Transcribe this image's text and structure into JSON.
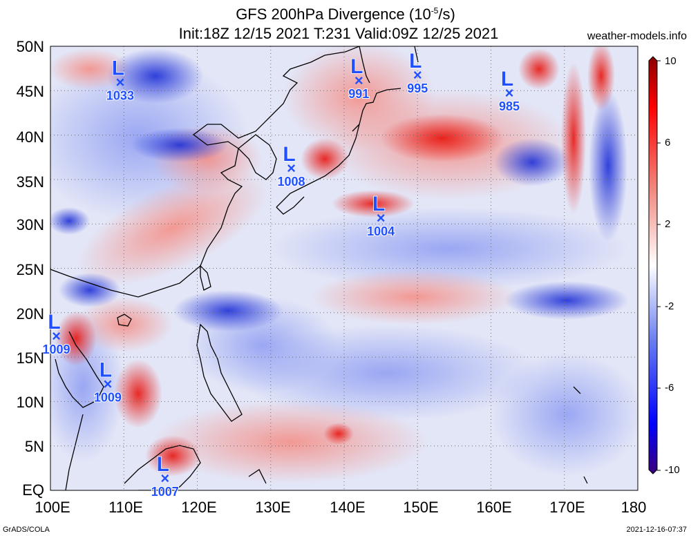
{
  "header": {
    "title_main": "GFS 200hPa Divergence (10",
    "title_exp": "-5",
    "title_unit": "/s)",
    "subtitle": "Init:18Z 12/15 2021 T:231 Valid:09Z 12/25 2021",
    "site": "weather-models.info"
  },
  "footer": {
    "software": "GrADS/COLA",
    "timestamp": "2021-12-16-07:37"
  },
  "map": {
    "lat_labels": [
      "50N",
      "45N",
      "40N",
      "35N",
      "30N",
      "25N",
      "20N",
      "15N",
      "10N",
      "5N",
      "EQ"
    ],
    "lon_labels": [
      "100E",
      "110E",
      "120E",
      "130E",
      "140E",
      "150E",
      "160E",
      "170E",
      "180"
    ],
    "lows": [
      {
        "symbol": "L",
        "marker": "×",
        "pressure": "1033",
        "lat": 46.0,
        "lon": 109.5
      },
      {
        "symbol": "L",
        "marker": "×",
        "pressure": "991",
        "lat": 46.2,
        "lon": 142.0
      },
      {
        "symbol": "L",
        "marker": "×",
        "pressure": "995",
        "lat": 46.8,
        "lon": 150.0
      },
      {
        "symbol": "L",
        "marker": "×",
        "pressure": "985",
        "lat": 44.8,
        "lon": 162.5
      },
      {
        "symbol": "L",
        "marker": "×",
        "pressure": "1008",
        "lat": 36.3,
        "lon": 132.8
      },
      {
        "symbol": "L",
        "marker": "×",
        "pressure": "1004",
        "lat": 30.7,
        "lon": 145.0
      },
      {
        "symbol": "L",
        "marker": "×",
        "pressure": "1009",
        "lat": 17.4,
        "lon": 100.8
      },
      {
        "symbol": "L",
        "marker": "×",
        "pressure": "1009",
        "lat": 12.0,
        "lon": 107.8
      },
      {
        "symbol": "L",
        "marker": "×",
        "pressure": "1007",
        "lat": 1.4,
        "lon": 115.6
      }
    ]
  },
  "colorbar": {
    "labels": [
      "10",
      "6",
      "2",
      "-2",
      "-6",
      "-10"
    ],
    "stops": [
      "#4b0082",
      "#0000ff",
      "#ffffff",
      "#ff0000",
      "#8b0000"
    ]
  },
  "colors": {
    "low_marker": "#1f4fff",
    "coastline": "#000000",
    "grid": "#6b6b6b"
  }
}
